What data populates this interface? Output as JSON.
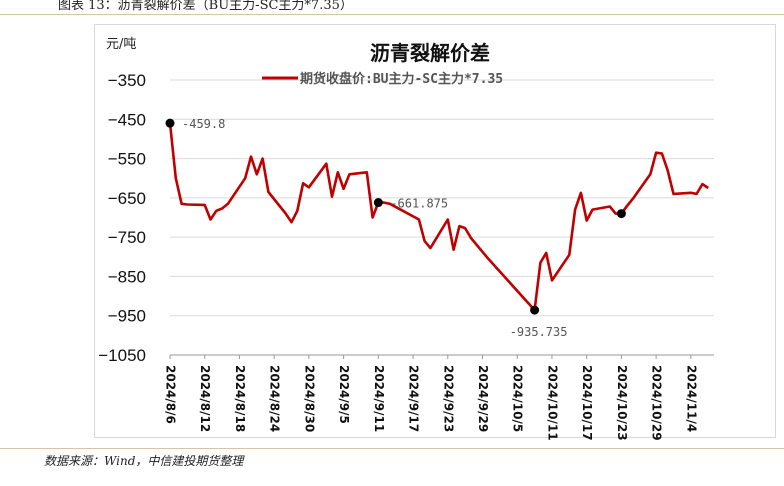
{
  "figure_caption": "图表 13：沥青裂解价差（BU主力-SC主力*7.35）",
  "source_note": "数据来源：Wind，中信建投期货整理",
  "chart_data": {
    "type": "line",
    "title": "沥青裂解价差",
    "ylabel": "元/吨",
    "xlabel": "",
    "ylim": [
      -1050,
      -350
    ],
    "yticks": [
      -350,
      -450,
      -550,
      -650,
      -750,
      -850,
      -950,
      -1050
    ],
    "grid": true,
    "legend_position": "top",
    "line_color": "#c00000",
    "x_tick_labels": [
      "2024/8/6",
      "2024/8/12",
      "2024/8/18",
      "2024/8/24",
      "2024/8/30",
      "2024/9/5",
      "2024/9/11",
      "2024/9/17",
      "2024/9/23",
      "2024/9/29",
      "2024/10/5",
      "2024/10/11",
      "2024/10/17",
      "2024/10/23",
      "2024/10/29",
      "2024/11/4"
    ],
    "series": [
      {
        "name": "期货收盘价:BU主力-SC主力*7.35",
        "x": [
          "2024-08-06",
          "2024-08-07",
          "2024-08-08",
          "2024-08-09",
          "2024-08-12",
          "2024-08-13",
          "2024-08-14",
          "2024-08-15",
          "2024-08-16",
          "2024-08-19",
          "2024-08-20",
          "2024-08-21",
          "2024-08-22",
          "2024-08-23",
          "2024-08-26",
          "2024-08-27",
          "2024-08-28",
          "2024-08-29",
          "2024-08-30",
          "2024-09-02",
          "2024-09-03",
          "2024-09-04",
          "2024-09-05",
          "2024-09-06",
          "2024-09-09",
          "2024-09-10",
          "2024-09-11",
          "2024-09-12",
          "2024-09-13",
          "2024-09-18",
          "2024-09-19",
          "2024-09-20",
          "2024-09-23",
          "2024-09-24",
          "2024-09-25",
          "2024-09-26",
          "2024-09-27",
          "2024-09-30",
          "2024-10-08",
          "2024-10-09",
          "2024-10-10",
          "2024-10-11",
          "2024-10-14",
          "2024-10-15",
          "2024-10-16",
          "2024-10-17",
          "2024-10-18",
          "2024-10-21",
          "2024-10-22",
          "2024-10-23",
          "2024-10-24",
          "2024-10-25",
          "2024-10-28",
          "2024-10-29",
          "2024-10-30",
          "2024-10-31",
          "2024-11-01",
          "2024-11-04",
          "2024-11-05",
          "2024-11-06",
          "2024-11-07"
        ],
        "y": [
          -459.8,
          -600,
          -665,
          -667,
          -668,
          -705,
          -683,
          -677,
          -665,
          -600,
          -545,
          -590,
          -550,
          -635,
          -690,
          -712,
          -683,
          -613,
          -623,
          -563,
          -647,
          -585,
          -627,
          -590,
          -585,
          -700,
          -661.875,
          -662,
          -665,
          -705,
          -760,
          -778,
          -705,
          -782,
          -722,
          -727,
          -752,
          -805,
          -935.735,
          -815,
          -790,
          -860,
          -795,
          -680,
          -637,
          -708,
          -680,
          -672,
          -690,
          -690,
          -670,
          -652,
          -590,
          -535,
          -537,
          -580,
          -640,
          -637,
          -640,
          -615,
          -625
        ],
        "annotations": [
          {
            "x": "2024-08-06",
            "y": -459.8,
            "label": "-459.8"
          },
          {
            "x": "2024-09-11",
            "y": -661.875,
            "label": "-661.875"
          },
          {
            "x": "2024-10-08",
            "y": -935.735,
            "label": "-935.735"
          },
          {
            "x": "2024-10-23",
            "y": -690,
            "label": ""
          }
        ]
      }
    ]
  }
}
